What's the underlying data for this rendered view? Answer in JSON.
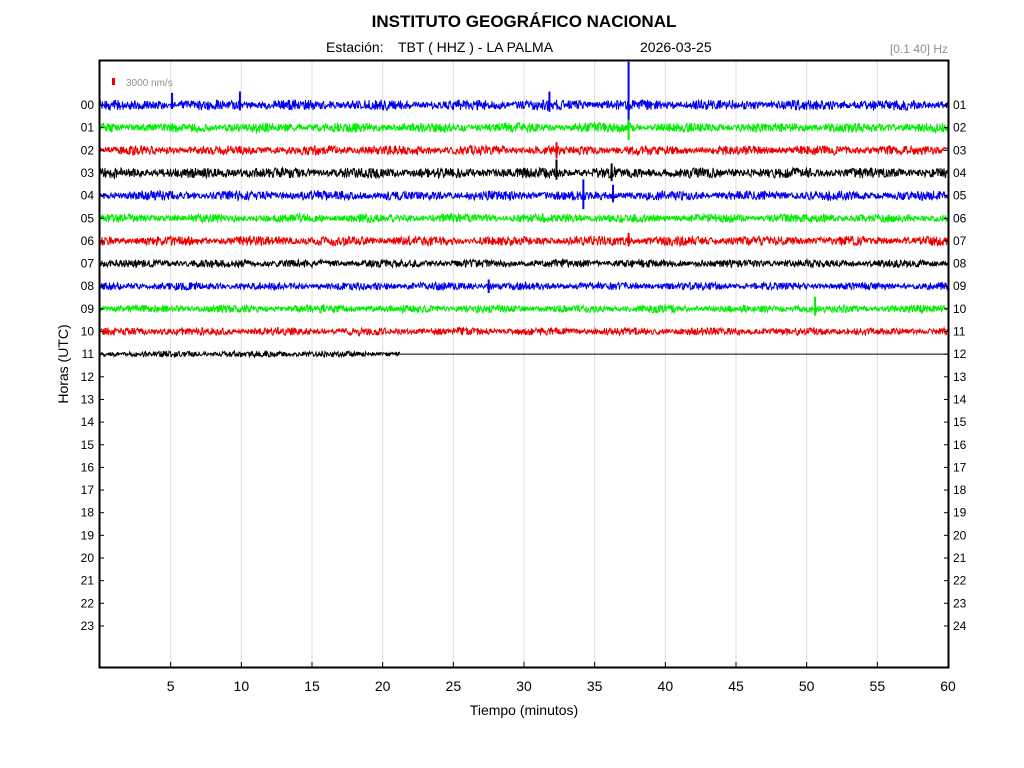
{
  "chart_data": {
    "type": "line",
    "title": "INSTITUTO GEOGRÁFICO NACIONAL",
    "station_label": "Estación:",
    "station": "TBT ( HHZ ) - LA PALMA",
    "date": "2026-03-25",
    "filter": "[0.1 40] Hz",
    "scale_label": "3000 nm/s",
    "xlabel": "Tiempo (minutos)",
    "ylabel": "Horas (UTC)",
    "xlim": [
      0,
      60
    ],
    "x_ticks": [
      "5",
      "10",
      "15",
      "20",
      "25",
      "30",
      "35",
      "40",
      "45",
      "50",
      "55",
      "60"
    ],
    "left_hours": [
      "00",
      "01",
      "02",
      "03",
      "04",
      "05",
      "06",
      "07",
      "08",
      "09",
      "10",
      "11",
      "12",
      "13",
      "14",
      "15",
      "16",
      "17",
      "18",
      "19",
      "20",
      "21",
      "22",
      "23"
    ],
    "right_hours": [
      "01",
      "02",
      "03",
      "04",
      "05",
      "06",
      "07",
      "08",
      "09",
      "10",
      "11",
      "12",
      "13",
      "14",
      "15",
      "16",
      "17",
      "18",
      "19",
      "20",
      "21",
      "22",
      "23",
      "24"
    ],
    "grid": true,
    "colors": {
      "blue": "#0000ee",
      "green": "#00ee00",
      "red": "#ee0000",
      "black": "#000000",
      "scale_bar": "#ee0000",
      "grid": "#dcdcdc",
      "filter_text": "#909090"
    },
    "series": [
      {
        "hour": "00",
        "color": "blue",
        "end_minute": 60,
        "amplitude": 0.6,
        "spikes": [
          {
            "minute": 37.4,
            "up": 3.2,
            "down": 1.8
          },
          {
            "minute": 31.8,
            "up": 1.0,
            "down": 0.5
          },
          {
            "minute": 9.9,
            "up": 1.0,
            "down": 0.4
          },
          {
            "minute": 5.1,
            "up": 0.9,
            "down": 0.3
          }
        ]
      },
      {
        "hour": "01",
        "color": "green",
        "end_minute": 60,
        "amplitude": 0.55,
        "spikes": [
          {
            "minute": 37.4,
            "up": 0.6,
            "down": 0.9
          }
        ]
      },
      {
        "hour": "02",
        "color": "red",
        "end_minute": 60,
        "amplitude": 0.55,
        "spikes": [
          {
            "minute": 32.3,
            "up": 0.6,
            "down": 0.6
          }
        ]
      },
      {
        "hour": "03",
        "color": "black",
        "end_minute": 60,
        "amplitude": 0.6,
        "spikes": [
          {
            "minute": 32.3,
            "up": 1.0,
            "down": 0.5
          },
          {
            "minute": 36.2,
            "up": 0.7,
            "down": 0.6
          }
        ]
      },
      {
        "hour": "04",
        "color": "blue",
        "end_minute": 60,
        "amplitude": 0.55,
        "spikes": [
          {
            "minute": 34.2,
            "up": 1.2,
            "down": 1.0
          },
          {
            "minute": 36.3,
            "up": 0.8,
            "down": 0.5
          }
        ]
      },
      {
        "hour": "05",
        "color": "green",
        "end_minute": 60,
        "amplitude": 0.5,
        "spikes": []
      },
      {
        "hour": "06",
        "color": "red",
        "end_minute": 60,
        "amplitude": 0.55,
        "spikes": [
          {
            "minute": 37.4,
            "up": 0.6,
            "down": 0.4
          }
        ]
      },
      {
        "hour": "07",
        "color": "black",
        "end_minute": 60,
        "amplitude": 0.45,
        "spikes": []
      },
      {
        "hour": "08",
        "color": "blue",
        "end_minute": 60,
        "amplitude": 0.45,
        "spikes": [
          {
            "minute": 27.5,
            "up": 0.5,
            "down": 0.5
          }
        ]
      },
      {
        "hour": "09",
        "color": "green",
        "end_minute": 60,
        "amplitude": 0.45,
        "spikes": [
          {
            "minute": 50.6,
            "up": 0.9,
            "down": 0.5
          }
        ]
      },
      {
        "hour": "10",
        "color": "red",
        "end_minute": 60,
        "amplitude": 0.45,
        "spikes": []
      },
      {
        "hour": "11",
        "color": "black",
        "end_minute": 21.2,
        "amplitude": 0.35,
        "spikes": []
      }
    ]
  }
}
